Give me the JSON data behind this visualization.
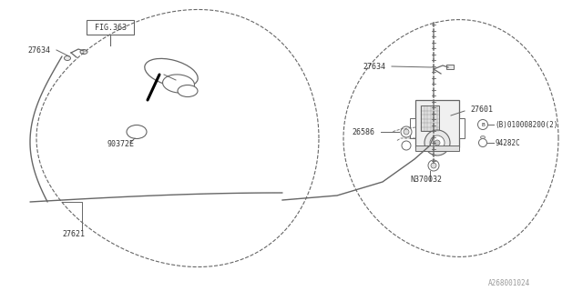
{
  "bg_color": "#ffffff",
  "line_color": "#666666",
  "text_color": "#333333",
  "fig_width": 6.4,
  "fig_height": 3.2,
  "dpi": 100,
  "fig_ref": "FIG.363",
  "label_27634": "27634",
  "label_27621": "27621",
  "label_90372E": "90372E",
  "label_27601": "27601",
  "label_B": "(B)010008200(2)",
  "label_26586": "26586",
  "label_N370032": "N370032",
  "label_94282C": "94282C",
  "watermark": "A268001024"
}
